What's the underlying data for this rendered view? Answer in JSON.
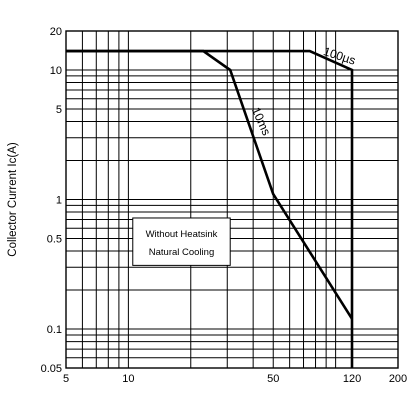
{
  "chart_data": {
    "type": "line",
    "title": "",
    "xlabel": "",
    "ylabel": "Collector Current Ic(A)",
    "x_scale": "log",
    "y_scale": "log",
    "xlim": [
      5,
      200
    ],
    "ylim": [
      0.05,
      20
    ],
    "grid": true,
    "x_ticks": [
      {
        "value": 5,
        "label": "5"
      },
      {
        "value": 10,
        "label": "10"
      },
      {
        "value": 50,
        "label": "50"
      },
      {
        "value": 120,
        "label": "120"
      },
      {
        "value": 200,
        "label": "200"
      }
    ],
    "y_ticks": [
      {
        "value": 0.05,
        "label": "0.05"
      },
      {
        "value": 0.1,
        "label": "0.1"
      },
      {
        "value": 0.5,
        "label": "0.5"
      },
      {
        "value": 1,
        "label": "1"
      },
      {
        "value": 5,
        "label": "5"
      },
      {
        "value": 10,
        "label": "10"
      },
      {
        "value": 20,
        "label": "20"
      }
    ],
    "series": [
      {
        "name": "100µs",
        "x": [
          5,
          75,
          120,
          120
        ],
        "y": [
          14,
          14,
          10,
          0.05
        ]
      },
      {
        "name": "10ms",
        "x": [
          5,
          23,
          31,
          50,
          120
        ],
        "y": [
          14,
          14,
          10,
          1.1,
          0.12
        ]
      }
    ],
    "annotations": [
      "Without Heatsink",
      "Natural Cooling"
    ]
  }
}
